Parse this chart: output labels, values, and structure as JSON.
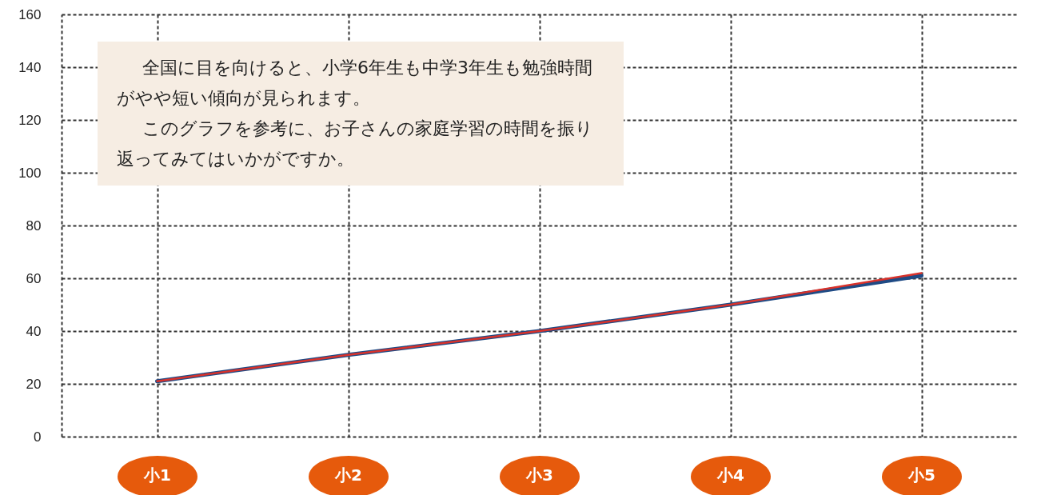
{
  "chart_data": {
    "type": "line",
    "categories": [
      "小1",
      "小2",
      "小3",
      "小4",
      "小5"
    ],
    "series": [
      {
        "color": "#d9322b",
        "values": [
          21,
          31,
          40,
          50,
          62
        ]
      },
      {
        "color": "#1f4b85",
        "values": [
          21,
          31,
          40,
          50,
          61
        ]
      }
    ],
    "ylim": [
      0,
      160
    ],
    "yticks": [
      0,
      20,
      40,
      60,
      80,
      100,
      120,
      140,
      160
    ],
    "grid": true,
    "annotations": [
      "全国に目を向けると、小学6年生も中学3年生も勉強時間がやや短い傾向が見られます。",
      "このグラフを参考に、お子さんの家庭学習の時間を振り返ってみてはいかがですか。"
    ]
  }
}
